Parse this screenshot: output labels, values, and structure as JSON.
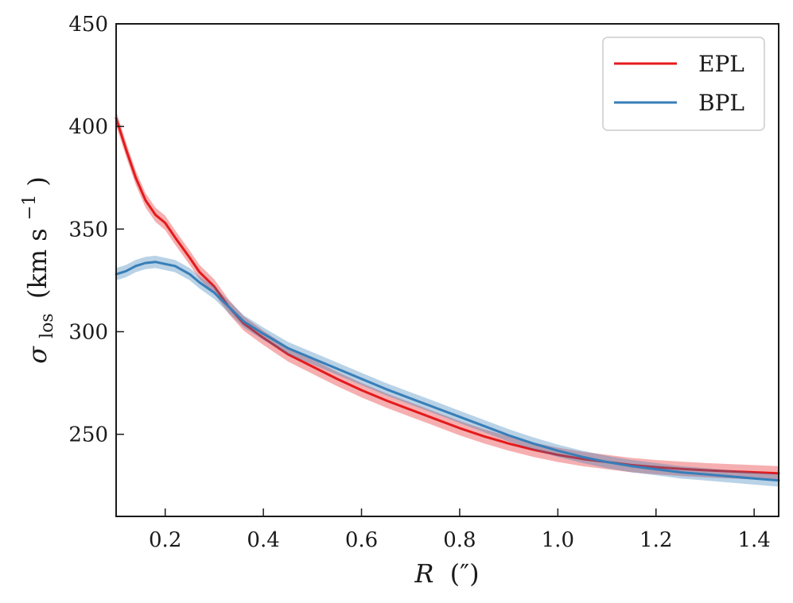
{
  "chart_data": {
    "type": "line",
    "xlabel_var": "R",
    "xlabel_unit": "(″)",
    "ylabel_var": "σ",
    "ylabel_sub": "los",
    "ylabel_unit": "(km s",
    "ylabel_sup": "−1",
    "ylabel_close": ")",
    "xlim": [
      0.1,
      1.45
    ],
    "ylim": [
      210,
      450
    ],
    "x_ticks": [
      0.2,
      0.4,
      0.6,
      0.8,
      1.0,
      1.2,
      1.4
    ],
    "x_tick_labels": [
      "0.2",
      "0.4",
      "0.6",
      "0.8",
      "1.0",
      "1.2",
      "1.4"
    ],
    "y_ticks": [
      250,
      300,
      350,
      400,
      450
    ],
    "y_tick_labels": [
      "250",
      "300",
      "350",
      "400",
      "450"
    ],
    "grid": false,
    "legend_position": "top-right",
    "series": [
      {
        "name": "EPL",
        "color": "#e41a1c",
        "band": 3.5,
        "x": [
          0.1,
          0.12,
          0.14,
          0.16,
          0.18,
          0.2,
          0.22,
          0.25,
          0.27,
          0.3,
          0.33,
          0.36,
          0.4,
          0.45,
          0.5,
          0.55,
          0.6,
          0.65,
          0.7,
          0.75,
          0.8,
          0.85,
          0.9,
          0.95,
          1.0,
          1.05,
          1.1,
          1.15,
          1.2,
          1.25,
          1.3,
          1.35,
          1.4,
          1.45
        ],
        "y": [
          404,
          389,
          375,
          364,
          357,
          353,
          346,
          336,
          329,
          322,
          312,
          304,
          297,
          289,
          283,
          277,
          271.5,
          266.5,
          262,
          257.5,
          253,
          249,
          245.5,
          242.5,
          240,
          238,
          236.5,
          235,
          234,
          233.2,
          232.5,
          232,
          231.5,
          231
        ]
      },
      {
        "name": "BPL",
        "color": "#377eb8",
        "band": 3.0,
        "x": [
          0.1,
          0.12,
          0.14,
          0.16,
          0.18,
          0.2,
          0.22,
          0.25,
          0.27,
          0.3,
          0.33,
          0.36,
          0.4,
          0.45,
          0.5,
          0.55,
          0.6,
          0.65,
          0.7,
          0.75,
          0.8,
          0.85,
          0.9,
          0.95,
          1.0,
          1.05,
          1.1,
          1.15,
          1.2,
          1.25,
          1.3,
          1.35,
          1.4,
          1.45
        ],
        "y": [
          328,
          329.5,
          332,
          333.5,
          334,
          333,
          332,
          328,
          324,
          319,
          312,
          305,
          299,
          292,
          287,
          282,
          277,
          272,
          267.5,
          263,
          258.5,
          254,
          249.5,
          245.5,
          242,
          239,
          236.5,
          234.5,
          233,
          231.5,
          230.5,
          229.5,
          228.5,
          227.5
        ]
      }
    ]
  }
}
